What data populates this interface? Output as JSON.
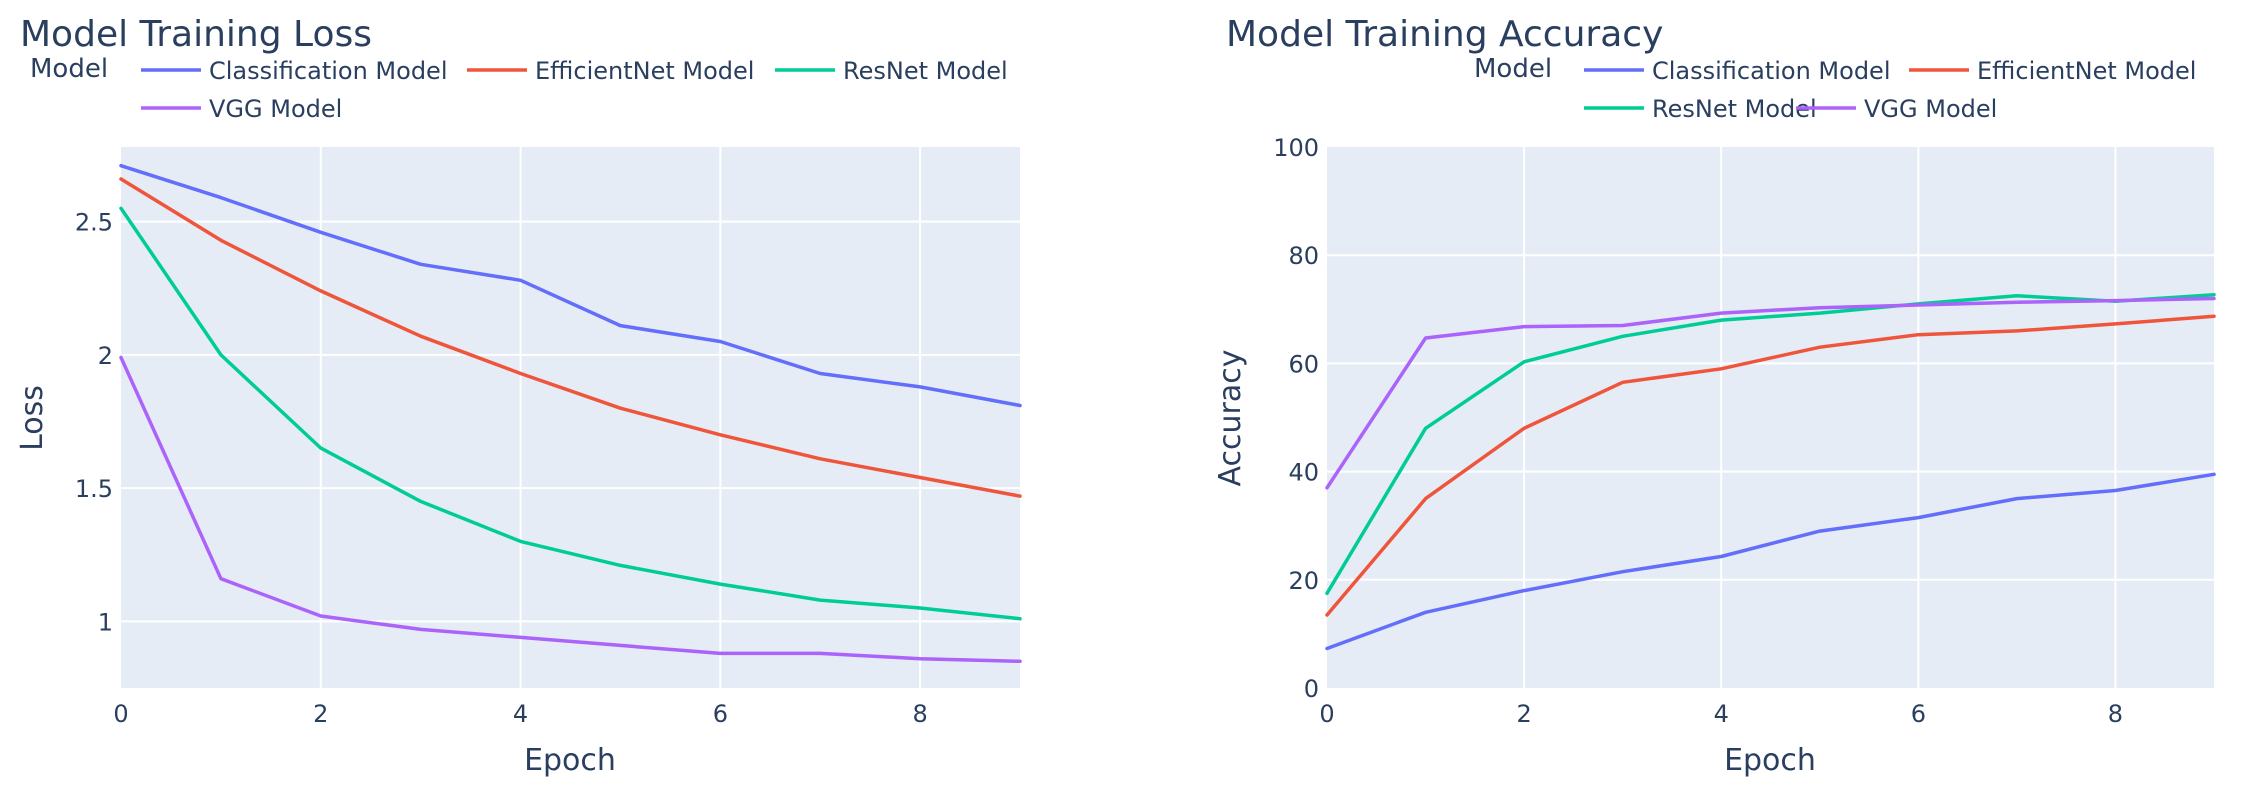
{
  "colors": {
    "Classification Model": "#636efa",
    "EfficientNet Model": "#ef553b",
    "ResNet Model": "#00cc96",
    "VGG Model": "#ab63fa"
  },
  "chart_data": [
    {
      "type": "line",
      "title": "Model Training Loss",
      "legend_title": "Model",
      "legend_placement": "top",
      "xlabel": "Epoch",
      "ylabel": "Loss",
      "xlim": [
        0,
        9
      ],
      "ylim": [
        0.75,
        2.78
      ],
      "xticks": [
        0,
        2,
        4,
        6,
        8
      ],
      "xtick_labels": [
        "0",
        "2",
        "4",
        "6",
        "8"
      ],
      "yticks": [
        1,
        1.5,
        2,
        2.5
      ],
      "ytick_labels": [
        "1",
        "1.5",
        "2",
        "2.5"
      ],
      "grid": true,
      "x": [
        0,
        1,
        2,
        3,
        4,
        5,
        6,
        7,
        8,
        9
      ],
      "series": [
        {
          "name": "Classification Model",
          "values": [
            2.71,
            2.59,
            2.46,
            2.34,
            2.28,
            2.11,
            2.05,
            1.93,
            1.88,
            1.81
          ]
        },
        {
          "name": "EfficientNet Model",
          "values": [
            2.66,
            2.43,
            2.24,
            2.07,
            1.93,
            1.8,
            1.7,
            1.61,
            1.54,
            1.47
          ]
        },
        {
          "name": "ResNet Model",
          "values": [
            2.55,
            2.0,
            1.65,
            1.45,
            1.3,
            1.21,
            1.14,
            1.08,
            1.05,
            1.01
          ]
        },
        {
          "name": "VGG Model",
          "values": [
            1.99,
            1.16,
            1.02,
            0.97,
            0.94,
            0.91,
            0.88,
            0.88,
            0.86,
            0.85
          ]
        }
      ]
    },
    {
      "type": "line",
      "title": "Model Training Accuracy",
      "legend_title": "Model",
      "legend_placement": "top",
      "xlabel": "Epoch",
      "ylabel": "Accuracy",
      "xlim": [
        0,
        9
      ],
      "ylim": [
        0,
        100
      ],
      "xticks": [
        0,
        2,
        4,
        6,
        8
      ],
      "xtick_labels": [
        "0",
        "2",
        "4",
        "6",
        "8"
      ],
      "yticks": [
        0,
        20,
        40,
        60,
        80,
        100
      ],
      "ytick_labels": [
        "0",
        "20",
        "40",
        "60",
        "80",
        "100"
      ],
      "grid": true,
      "x": [
        0,
        1,
        2,
        3,
        4,
        5,
        6,
        7,
        8,
        9
      ],
      "series": [
        {
          "name": "Classification Model",
          "values": [
            7.3,
            14.0,
            18.0,
            21.5,
            24.3,
            29.0,
            31.5,
            35.0,
            36.5,
            39.5
          ]
        },
        {
          "name": "EfficientNet Model",
          "values": [
            13.5,
            35.0,
            48.0,
            56.5,
            59.0,
            63.0,
            65.3,
            66.0,
            67.3,
            68.7
          ]
        },
        {
          "name": "ResNet Model",
          "values": [
            17.5,
            48.0,
            60.3,
            65.0,
            68.0,
            69.3,
            71.0,
            72.5,
            71.5,
            72.7
          ]
        },
        {
          "name": "VGG Model",
          "values": [
            37.0,
            64.7,
            66.8,
            67.0,
            69.3,
            70.3,
            70.8,
            71.3,
            71.6,
            72.0
          ]
        }
      ]
    }
  ]
}
